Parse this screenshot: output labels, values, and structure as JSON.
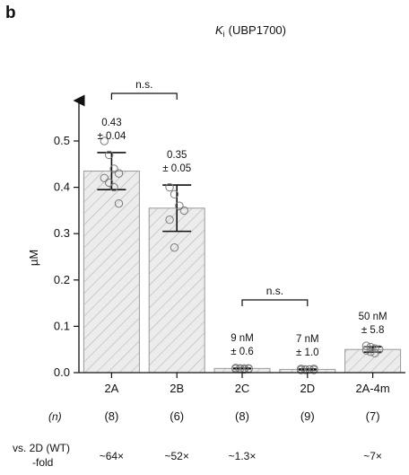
{
  "panel_label": "b",
  "chart_data": {
    "type": "bar",
    "title_symbol": "K",
    "title_subscript": "i",
    "title_rest": "(UBP1700)",
    "ylabel": "µM",
    "ylim": [
      0,
      0.5
    ],
    "yticks": [
      "0.0",
      "0.1",
      "0.2",
      "0.3",
      "0.4",
      "0.5"
    ],
    "categories": [
      "2A",
      "2B",
      "2C",
      "2D",
      "2A-4m"
    ],
    "values": [
      0.435,
      0.355,
      0.009,
      0.007,
      0.05
    ],
    "errors": [
      0.04,
      0.05,
      0.0006,
      0.001,
      0.0058
    ],
    "value_labels": [
      [
        "0.43",
        "± 0.04"
      ],
      [
        "0.35",
        "± 0.05"
      ],
      [
        "9 nM",
        "± 0.6"
      ],
      [
        "7 nM",
        "± 1.0"
      ],
      [
        "50 nM",
        "± 5.8"
      ]
    ],
    "points": [
      [
        0.5,
        0.47,
        0.44,
        0.43,
        0.42,
        0.41,
        0.4,
        0.365
      ],
      [
        0.4,
        0.385,
        0.36,
        0.35,
        0.33,
        0.27
      ],
      [
        0.01,
        0.009,
        0.009,
        0.008,
        0.008,
        0.008,
        0.007,
        0.009
      ],
      [
        0.008,
        0.007,
        0.007,
        0.006,
        0.006,
        0.006,
        0.007,
        0.008,
        0.006
      ],
      [
        0.058,
        0.055,
        0.052,
        0.05,
        0.048,
        0.045,
        0.042
      ]
    ],
    "n_label": "(n)",
    "n_values": [
      "(8)",
      "(6)",
      "(8)",
      "(9)",
      "(7)"
    ],
    "fold_label_1": "vs. 2D (WT)",
    "fold_label_2": "-fold",
    "fold_values": [
      "~64×",
      "~52×",
      "~1.3×",
      "",
      "~7×"
    ],
    "brackets": [
      {
        "from": 0,
        "to": 1,
        "label": "n.s."
      },
      {
        "from": 2,
        "to": 3,
        "label": "n.s."
      }
    ],
    "colors": {
      "bar_fill": "#ececec",
      "bar_stroke": "#9a9a9a",
      "hatch": "#b5b5b5",
      "points": "#7a7a7a",
      "axis": "#111111"
    }
  }
}
